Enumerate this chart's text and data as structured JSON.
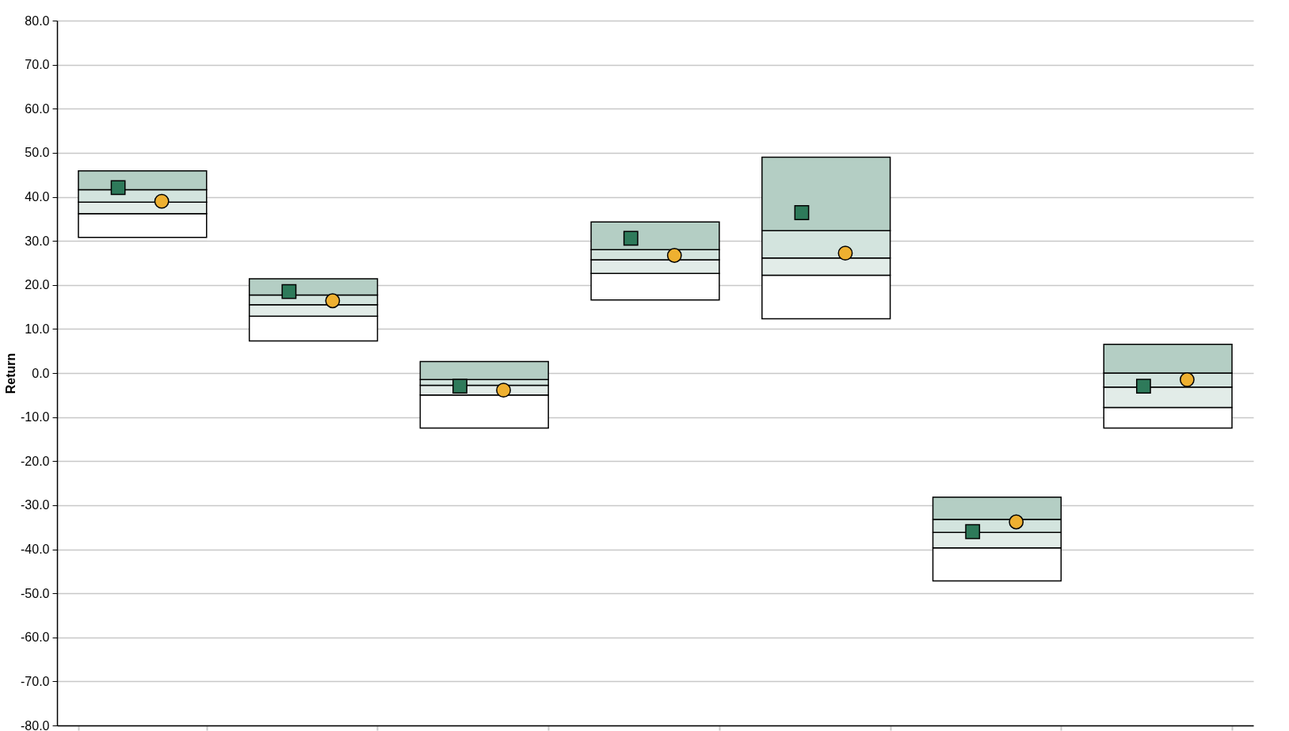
{
  "chart_data": {
    "type": "bar",
    "ylabel": "Return",
    "categories": [
      null,
      null,
      null,
      null,
      null,
      null,
      null
    ],
    "series": [
      {
        "color": "#ffffff",
        "base": [
          30.8,
          7.3,
          -12.5,
          16.6,
          12.3,
          -47.2,
          -12.5
        ],
        "values": [
          5.4,
          5.6,
          7.5,
          6.0,
          9.9,
          7.5,
          4.7
        ]
      },
      {
        "color": "#e2ece8",
        "base": [
          36.2,
          12.9,
          -5.0,
          22.6,
          22.2,
          -39.7,
          -7.8
        ],
        "values": [
          2.6,
          2.6,
          2.2,
          3.1,
          3.9,
          3.5,
          4.6
        ]
      },
      {
        "color": "#d3e4de",
        "base": [
          38.8,
          15.5,
          -2.8,
          25.7,
          26.1,
          -36.2,
          -3.2
        ],
        "values": [
          2.8,
          2.2,
          1.3,
          2.3,
          6.2,
          3.0,
          3.2
        ]
      },
      {
        "color": "#b4cec4",
        "base": [
          41.6,
          17.7,
          -1.5,
          28.0,
          32.3,
          -33.2,
          0.0
        ],
        "values": [
          4.3,
          3.7,
          4.1,
          6.3,
          16.7,
          5.0,
          6.5
        ]
      },
      {
        "type": "scatter",
        "marker": "square",
        "color": "#2e7a5a",
        "values": [
          42.1,
          18.5,
          -3.0,
          30.6,
          36.4,
          -36.0,
          -3.0
        ]
      },
      {
        "type": "scatter",
        "marker": "circle",
        "color": "#eeb030",
        "values": [
          39.0,
          16.4,
          -3.9,
          26.7,
          27.2,
          -33.8,
          -1.5
        ]
      }
    ],
    "ylim": [
      -80,
      80
    ],
    "yticks": [
      {
        "value": -80,
        "label": "-80.0"
      },
      {
        "value": -70,
        "label": "-70.0"
      },
      {
        "value": -60,
        "label": "-60.0"
      },
      {
        "value": -50,
        "label": "-50.0"
      },
      {
        "value": -40,
        "label": "-40.0"
      },
      {
        "value": -30,
        "label": "-30.0"
      },
      {
        "value": -20,
        "label": "-20.0"
      },
      {
        "value": -10,
        "label": "-10.0"
      },
      {
        "value": 0,
        "label": "0.0"
      },
      {
        "value": 10,
        "label": "10.0"
      },
      {
        "value": 20,
        "label": "20.0"
      },
      {
        "value": 30,
        "label": "30.0"
      },
      {
        "value": 40,
        "label": "40.0"
      },
      {
        "value": 50,
        "label": "50.0"
      },
      {
        "value": 60,
        "label": "60.0"
      },
      {
        "value": 70,
        "label": "70.0"
      },
      {
        "value": 80,
        "label": "80.0"
      }
    ],
    "grid": "y",
    "tick_labels": "y"
  }
}
